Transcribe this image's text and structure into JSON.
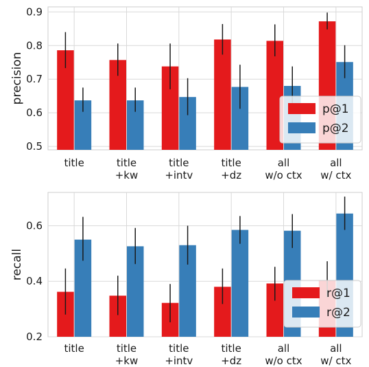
{
  "chart_data": [
    {
      "type": "bar",
      "categories": [
        [
          "title"
        ],
        [
          "title",
          "+kw"
        ],
        [
          "title",
          "+intv"
        ],
        [
          "title",
          "+dz"
        ],
        [
          "all",
          "w/o ctx"
        ],
        [
          "all",
          "w/ ctx"
        ]
      ],
      "ylabel": "precision",
      "xlabel": "",
      "ylim": [
        0.49,
        0.915
      ],
      "yticks": [
        "0.5",
        "0.6",
        "0.7",
        "0.8",
        "0.9"
      ],
      "grid": true,
      "legend_position": "right",
      "series": [
        {
          "name": "p@1",
          "color": "#e41a1c",
          "values": [
            0.786,
            0.757,
            0.738,
            0.818,
            0.814,
            0.872
          ],
          "err_low": [
            0.733,
            0.71,
            0.67,
            0.773,
            0.768,
            0.848
          ],
          "err_high": [
            0.84,
            0.806,
            0.806,
            0.864,
            0.863,
            0.898
          ]
        },
        {
          "name": "p@2",
          "color": "#377eb8",
          "values": [
            0.637,
            0.637,
            0.647,
            0.677,
            0.68,
            0.751
          ],
          "err_low": [
            0.603,
            0.603,
            0.593,
            0.612,
            0.625,
            0.703
          ],
          "err_high": [
            0.675,
            0.675,
            0.703,
            0.743,
            0.738,
            0.801
          ]
        }
      ]
    },
    {
      "type": "bar",
      "categories": [
        [
          "title"
        ],
        [
          "title",
          "+kw"
        ],
        [
          "title",
          "+intv"
        ],
        [
          "title",
          "+dz"
        ],
        [
          "all",
          "w/o ctx"
        ],
        [
          "all",
          "w/ ctx"
        ]
      ],
      "ylabel": "recall",
      "xlabel": "",
      "ylim": [
        0.2,
        0.72
      ],
      "yticks": [
        "0.2",
        "0.4",
        "0.6"
      ],
      "grid": true,
      "legend_position": "right",
      "series": [
        {
          "name": "r@1",
          "color": "#e41a1c",
          "values": [
            0.362,
            0.348,
            0.322,
            0.38,
            0.392,
            0.404
          ],
          "err_low": [
            0.28,
            0.278,
            0.252,
            0.318,
            0.33,
            0.342
          ],
          "err_high": [
            0.446,
            0.42,
            0.39,
            0.446,
            0.452,
            0.472
          ]
        },
        {
          "name": "r@2",
          "color": "#377eb8",
          "values": [
            0.55,
            0.526,
            0.53,
            0.585,
            0.582,
            0.644
          ],
          "err_low": [
            0.474,
            0.462,
            0.46,
            0.535,
            0.52,
            0.585
          ],
          "err_high": [
            0.632,
            0.592,
            0.6,
            0.635,
            0.642,
            0.705
          ]
        }
      ]
    }
  ]
}
